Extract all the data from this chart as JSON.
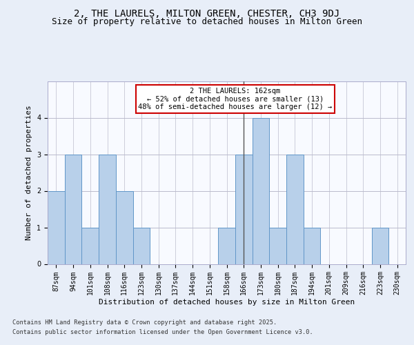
{
  "title1": "2, THE LAURELS, MILTON GREEN, CHESTER, CH3 9DJ",
  "title2": "Size of property relative to detached houses in Milton Green",
  "xlabel": "Distribution of detached houses by size in Milton Green",
  "ylabel": "Number of detached properties",
  "categories": [
    "87sqm",
    "94sqm",
    "101sqm",
    "108sqm",
    "116sqm",
    "123sqm",
    "130sqm",
    "137sqm",
    "144sqm",
    "151sqm",
    "158sqm",
    "166sqm",
    "173sqm",
    "180sqm",
    "187sqm",
    "194sqm",
    "201sqm",
    "209sqm",
    "216sqm",
    "223sqm",
    "230sqm"
  ],
  "values": [
    2,
    3,
    1,
    3,
    2,
    1,
    0,
    0,
    0,
    0,
    1,
    3,
    4,
    1,
    3,
    1,
    0,
    0,
    0,
    1,
    0
  ],
  "highlight_index": 11,
  "bar_color": "#b8d0ea",
  "bar_edge_color": "#6096c8",
  "highlight_line_color": "#555555",
  "annotation_box_color": "#ffffff",
  "annotation_border_color": "#cc0000",
  "annotation_text": "2 THE LAURELS: 162sqm\n← 52% of detached houses are smaller (13)\n48% of semi-detached houses are larger (12) →",
  "ylim": [
    0,
    5
  ],
  "yticks": [
    0,
    1,
    2,
    3,
    4
  ],
  "footnote1": "Contains HM Land Registry data © Crown copyright and database right 2025.",
  "footnote2": "Contains public sector information licensed under the Open Government Licence v3.0.",
  "bg_color": "#e8eef8",
  "plot_bg_color": "#f8faff",
  "title1_fontsize": 10,
  "title2_fontsize": 9,
  "axis_label_fontsize": 8,
  "tick_fontsize": 7,
  "annotation_fontsize": 7.5,
  "footnote_fontsize": 6.2
}
